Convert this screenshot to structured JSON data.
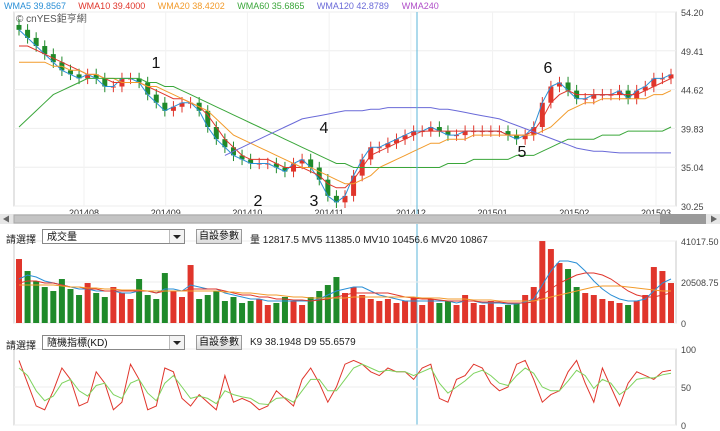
{
  "watermark": "© cnYES鉅亨網",
  "legend": [
    {
      "label": "WMA5",
      "value": "39.8567",
      "color": "#2a8fd6"
    },
    {
      "label": "WMA10",
      "value": "39.4000",
      "color": "#e0352b"
    },
    {
      "label": "WMA20",
      "value": "38.4202",
      "color": "#f29b2b"
    },
    {
      "label": "WMA60",
      "value": "35.6865",
      "color": "#3aa63a"
    },
    {
      "label": "WMA120",
      "value": "42.8789",
      "color": "#6a6ad8"
    },
    {
      "label": "WMA240",
      "value": "",
      "color": "#b04fc8"
    }
  ],
  "colors": {
    "up": "#e0352b",
    "down": "#1f8a2a",
    "cursor": "#5bb5d8"
  },
  "annotations": [
    "1",
    "2",
    "3",
    "4",
    "5",
    "6"
  ],
  "volume_panel": {
    "select_label": "請選擇",
    "select_value": "成交量",
    "button": "自設參數",
    "stats": "量 12817.5  MV5 11385.0  MV10 10456.6  MV20 10867"
  },
  "kd_panel": {
    "select_label": "請選擇",
    "select_value": "隨機指標(KD)",
    "button": "自設參數",
    "stats": "K9 38.1948   D9 55.6579"
  },
  "chart_data": [
    {
      "type": "candlestick",
      "title": "",
      "x_ticks": [
        "201408",
        "201409",
        "201410",
        "201411",
        "201412",
        "201501",
        "201502",
        "201503"
      ],
      "y_ticks": [
        54.2,
        49.41,
        44.62,
        39.83,
        35.04,
        30.25
      ],
      "ylim": [
        30.25,
        54.2
      ],
      "series": [
        {
          "name": "WMA5",
          "values": [
            52,
            51,
            50,
            49,
            48,
            47,
            46.5,
            46,
            46.5,
            46,
            45,
            45,
            46,
            46,
            45.5,
            44,
            43,
            42,
            42.5,
            43,
            43,
            42,
            40,
            38.5,
            37.5,
            36.5,
            36,
            35.5,
            35.5,
            35.5,
            35,
            34.5,
            35.5,
            36,
            35,
            33.5,
            31.5,
            30.7,
            31.5,
            34,
            36,
            37.5,
            37.5,
            38,
            38.5,
            39,
            39.5,
            39.5,
            40,
            39.5,
            39,
            39,
            39.5,
            39.5,
            39.5,
            39.5,
            39.5,
            39,
            38.5,
            39,
            40,
            43,
            45,
            45.5,
            44.5,
            43.5,
            43.5,
            44,
            44,
            44,
            44.5,
            43.5,
            44.5,
            45,
            46,
            46,
            46.5
          ]
        },
        {
          "name": "WMA10",
          "values": [
            50,
            50,
            49.5,
            49,
            48.5,
            48,
            47.5,
            47,
            46.5,
            46.5,
            46,
            45.5,
            45.5,
            45.5,
            45.5,
            45,
            44.5,
            44,
            43.5,
            43.5,
            43,
            42.5,
            41.5,
            40,
            38.5,
            37.5,
            36.5,
            36,
            36,
            36,
            35.5,
            35,
            35,
            35,
            34.5,
            34,
            33,
            32.5,
            32.5,
            33.5,
            35,
            36.5,
            37,
            37.5,
            38,
            38.5,
            39,
            39.5,
            39.5,
            39.5,
            39.5,
            39.5,
            39.5,
            39.5,
            39.5,
            39.5,
            39.5,
            39,
            39,
            39,
            39.5,
            41,
            43,
            44,
            44.5,
            44,
            44,
            44,
            44,
            44,
            44,
            44,
            44,
            44.5,
            45,
            45.5,
            46
          ]
        },
        {
          "name": "WMA20",
          "values": [
            48,
            48,
            48,
            48,
            47.5,
            47.5,
            47,
            47,
            46.5,
            46.5,
            46,
            46,
            45.5,
            45.5,
            45.5,
            45,
            45,
            44.5,
            44,
            43.5,
            43,
            42.5,
            42,
            41,
            40,
            39,
            38.5,
            38,
            37.5,
            37,
            36.5,
            36,
            35.5,
            35,
            35,
            34.5,
            34,
            33.5,
            33,
            33,
            33.5,
            34,
            35,
            35.5,
            36,
            36.5,
            37,
            37.5,
            38,
            38,
            38.5,
            38.5,
            38.5,
            39,
            39,
            39,
            39,
            39,
            39,
            39,
            39,
            39.5,
            40,
            41,
            42,
            42.5,
            43,
            43,
            43.5,
            43.5,
            43.5,
            43.5,
            43.5,
            43.5,
            44,
            44,
            44.5
          ]
        },
        {
          "name": "WMA60",
          "values": [
            40,
            41,
            42,
            43,
            44,
            44.5,
            45,
            45.5,
            46,
            46,
            46,
            46,
            46,
            46,
            46,
            45.5,
            45.5,
            45,
            45,
            44.5,
            44,
            43.5,
            43,
            42.5,
            42,
            41.5,
            41,
            40.5,
            40,
            39.5,
            39,
            38.5,
            38,
            37.5,
            37,
            36.5,
            36,
            35.5,
            35.5,
            35,
            35,
            35,
            35,
            35,
            35,
            35,
            35,
            35,
            35,
            35,
            35.5,
            35.5,
            35.5,
            36,
            36,
            36,
            36,
            36,
            36.5,
            36.5,
            36.5,
            37,
            37.5,
            38,
            38.5,
            38.5,
            38.5,
            38.5,
            39,
            39,
            39,
            39.5,
            39.5,
            39.5,
            39.5,
            39.5,
            40
          ]
        },
        {
          "name": "WMA120",
          "values": [
            null,
            null,
            null,
            null,
            null,
            null,
            null,
            null,
            null,
            null,
            null,
            null,
            null,
            null,
            null,
            null,
            null,
            null,
            null,
            null,
            null,
            null,
            null,
            null,
            36.5,
            37,
            37.5,
            38,
            38.5,
            39,
            39.5,
            40,
            40.5,
            41,
            41.2,
            41.4,
            41.6,
            41.8,
            42,
            42,
            42,
            42.2,
            42.2,
            42.4,
            42.4,
            42.4,
            42.4,
            42.4,
            42.4,
            42.2,
            42.2,
            42,
            41.8,
            41.6,
            41.4,
            41.2,
            41,
            40.6,
            40.2,
            39.8,
            39.4,
            39,
            38.6,
            38.2,
            37.8,
            37.4,
            37.2,
            37,
            37,
            36.9,
            36.8,
            36.8,
            36.8,
            36.8,
            36.8,
            36.8,
            36.8
          ]
        },
        {
          "name": "WMA240",
          "values": []
        }
      ]
    },
    {
      "type": "bar",
      "title": "",
      "y_ticks": [
        41017.5,
        20508.75,
        0
      ],
      "ylim": [
        0,
        41017.5
      ],
      "values": [
        32000,
        26000,
        21000,
        18000,
        16000,
        22000,
        17000,
        14000,
        20000,
        15000,
        13000,
        18000,
        15000,
        12000,
        22000,
        14000,
        12000,
        25000,
        16000,
        13000,
        29000,
        12000,
        14000,
        16000,
        11000,
        13000,
        10000,
        11000,
        12000,
        9000,
        10000,
        13000,
        11000,
        9000,
        13000,
        16000,
        19000,
        23000,
        15000,
        18000,
        14000,
        12000,
        11000,
        12000,
        10000,
        11000,
        13000,
        9000,
        12000,
        10000,
        11000,
        9000,
        14000,
        10000,
        9000,
        11000,
        8000,
        9000,
        10000,
        14000,
        18000,
        41000,
        37000,
        30000,
        27000,
        18000,
        15000,
        14000,
        12000,
        11000,
        10000,
        9000,
        11000,
        14000,
        28000,
        26000,
        20000
      ],
      "series": [
        {
          "name": "MV5",
          "values": [
            22000,
            24000,
            23000,
            21000,
            20000,
            19000,
            18000,
            17000,
            17000,
            16000,
            16000,
            16000,
            15000,
            15000,
            16000,
            16000,
            15000,
            17000,
            17000,
            16000,
            19000,
            18000,
            17000,
            17000,
            15000,
            14000,
            13000,
            12000,
            12000,
            11000,
            11000,
            11000,
            11000,
            11000,
            11000,
            12000,
            14000,
            16000,
            17000,
            18000,
            18000,
            16000,
            14000,
            13000,
            12000,
            11000,
            11000,
            11000,
            11000,
            11000,
            11000,
            10000,
            11000,
            11000,
            10000,
            10000,
            10000,
            9500,
            9500,
            10500,
            12000,
            19000,
            26000,
            31000,
            31000,
            30000,
            26000,
            21000,
            17000,
            14000,
            12000,
            11000,
            11000,
            12000,
            16000,
            20000,
            22000
          ]
        },
        {
          "name": "MV10",
          "values": [
            20000,
            21000,
            21000,
            20000,
            20000,
            19000,
            18000,
            18000,
            17000,
            17000,
            16000,
            16000,
            16000,
            16000,
            16000,
            16000,
            15000,
            16000,
            16000,
            16000,
            17000,
            17000,
            17000,
            17000,
            16000,
            15000,
            14000,
            14000,
            13000,
            13000,
            12000,
            12000,
            11500,
            11500,
            11000,
            11500,
            12000,
            13000,
            14000,
            15000,
            15000,
            15000,
            15000,
            15000,
            14000,
            13000,
            12500,
            12000,
            12000,
            11500,
            11000,
            11000,
            11000,
            11000,
            10500,
            10500,
            10500,
            10000,
            10000,
            10000,
            10500,
            14000,
            17000,
            20000,
            22000,
            24000,
            25000,
            25000,
            24000,
            22000,
            19000,
            16000,
            14000,
            13000,
            13000,
            14000,
            15000
          ]
        },
        {
          "name": "MV20",
          "values": [
            19000,
            19000,
            19000,
            19000,
            19000,
            18500,
            18000,
            18000,
            17500,
            17500,
            17000,
            17000,
            16500,
            16500,
            16500,
            16000,
            16000,
            16000,
            16000,
            16000,
            16000,
            16000,
            16000,
            16000,
            15500,
            15500,
            15000,
            15000,
            14500,
            14000,
            14000,
            13500,
            13000,
            13000,
            12500,
            12500,
            12500,
            12500,
            12500,
            13000,
            13000,
            13000,
            13000,
            13000,
            13000,
            13000,
            13000,
            12500,
            12500,
            12500,
            12000,
            12000,
            12000,
            11500,
            11500,
            11500,
            11000,
            11000,
            11000,
            11000,
            11000,
            12000,
            13000,
            14000,
            15000,
            16000,
            17000,
            18000,
            18500,
            18500,
            18500,
            18000,
            17500,
            17000,
            16500,
            16000,
            16000
          ]
        }
      ]
    },
    {
      "type": "line",
      "title": "",
      "y_ticks": [
        100,
        50,
        0
      ],
      "ylim": [
        0,
        100
      ],
      "series": [
        {
          "name": "K9",
          "values": [
            85,
            55,
            25,
            20,
            45,
            75,
            60,
            25,
            30,
            70,
            55,
            20,
            30,
            80,
            60,
            20,
            25,
            75,
            70,
            35,
            25,
            40,
            30,
            20,
            65,
            30,
            35,
            30,
            20,
            25,
            45,
            35,
            25,
            60,
            75,
            55,
            30,
            50,
            80,
            85,
            80,
            70,
            65,
            75,
            70,
            70,
            60,
            75,
            80,
            35,
            30,
            60,
            65,
            80,
            75,
            55,
            45,
            50,
            80,
            85,
            60,
            30,
            40,
            45,
            70,
            85,
            55,
            30,
            75,
            50,
            25,
            55,
            70,
            65,
            60,
            70,
            72
          ]
        },
        {
          "name": "D9",
          "values": [
            75,
            65,
            45,
            32,
            38,
            55,
            60,
            45,
            38,
            52,
            55,
            40,
            35,
            55,
            60,
            42,
            32,
            55,
            65,
            50,
            35,
            38,
            35,
            28,
            45,
            40,
            37,
            35,
            28,
            27,
            35,
            36,
            30,
            45,
            60,
            60,
            45,
            45,
            60,
            75,
            80,
            75,
            70,
            72,
            70,
            70,
            65,
            70,
            75,
            55,
            42,
            50,
            58,
            68,
            72,
            65,
            55,
            52,
            65,
            75,
            68,
            50,
            45,
            45,
            58,
            72,
            65,
            48,
            60,
            55,
            40,
            48,
            60,
            62,
            62,
            66,
            68
          ]
        }
      ]
    }
  ]
}
